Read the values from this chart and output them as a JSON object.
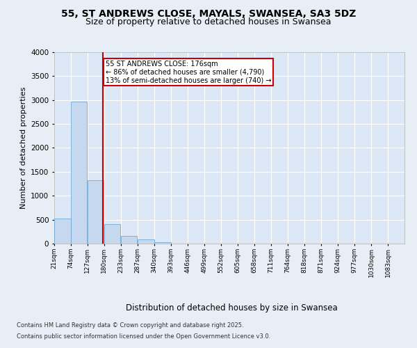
{
  "title_line1": "55, ST ANDREWS CLOSE, MAYALS, SWANSEA, SA3 5DZ",
  "title_line2": "Size of property relative to detached houses in Swansea",
  "xlabel": "Distribution of detached houses by size in Swansea",
  "ylabel": "Number of detached properties",
  "bar_color": "#c5d8ed",
  "bar_edge_color": "#5a9fd4",
  "property_line_color": "#cc0000",
  "property_value": 176,
  "property_label": "55 ST ANDREWS CLOSE: 176sqm",
  "annotation_line1": "← 86% of detached houses are smaller (4,790)",
  "annotation_line2": "13% of semi-detached houses are larger (740) →",
  "categories": [
    "21sqm",
    "74sqm",
    "127sqm",
    "180sqm",
    "233sqm",
    "287sqm",
    "340sqm",
    "393sqm",
    "446sqm",
    "499sqm",
    "552sqm",
    "605sqm",
    "658sqm",
    "711sqm",
    "764sqm",
    "818sqm",
    "871sqm",
    "924sqm",
    "977sqm",
    "1030sqm",
    "1083sqm"
  ],
  "bin_edges": [
    21,
    74,
    127,
    180,
    233,
    287,
    340,
    393,
    446,
    499,
    552,
    605,
    658,
    711,
    764,
    818,
    871,
    924,
    977,
    1030,
    1083
  ],
  "values": [
    530,
    2970,
    1330,
    410,
    165,
    85,
    30,
    0,
    0,
    0,
    0,
    0,
    0,
    0,
    0,
    0,
    0,
    0,
    0,
    0,
    0
  ],
  "ylim": [
    0,
    4000
  ],
  "yticks": [
    0,
    500,
    1000,
    1500,
    2000,
    2500,
    3000,
    3500,
    4000
  ],
  "background_color": "#e8eef5",
  "plot_bg_color": "#dce8f5",
  "footer_line1": "Contains HM Land Registry data © Crown copyright and database right 2025.",
  "footer_line2": "Contains public sector information licensed under the Open Government Licence v3.0.",
  "title_fontsize": 10,
  "subtitle_fontsize": 9,
  "annotation_box_edge_color": "#cc0000",
  "grid_color": "#ffffff"
}
